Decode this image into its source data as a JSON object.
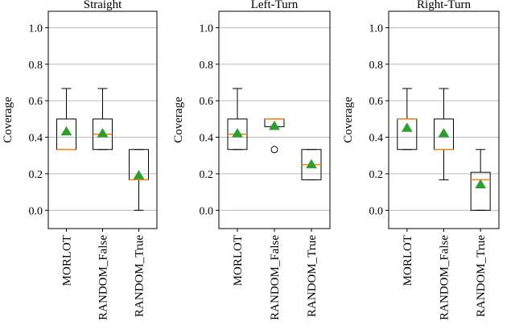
{
  "chart_data": [
    {
      "type": "box",
      "title": "Straight",
      "ylabel": "Coverage",
      "categories": [
        "MORLOT",
        "RANDOM_False",
        "RANDOM_True"
      ],
      "boxes": [
        {
          "whislo": 0.333,
          "q1": 0.333,
          "med": 0.333,
          "q3": 0.5,
          "whishi": 0.667,
          "mean": 0.43,
          "fliers": []
        },
        {
          "whislo": 0.333,
          "q1": 0.333,
          "med": 0.417,
          "q3": 0.5,
          "whishi": 0.667,
          "mean": 0.42,
          "fliers": []
        },
        {
          "whislo": 0,
          "q1": 0.167,
          "med": 0.167,
          "q3": 0.333,
          "whishi": 0.333,
          "mean": 0.19,
          "fliers": []
        }
      ],
      "ylim": [
        -0.1,
        1.09
      ],
      "yticks": [
        {
          "value": 0,
          "label": "0.0"
        },
        0.2,
        0.4,
        0.6,
        0.8,
        {
          "value": 1,
          "label": "1.0"
        }
      ],
      "grid": true,
      "median_color": "#ff7f0e",
      "mean_color": "#2ca02c"
    },
    {
      "type": "box",
      "title": "Left-Turn",
      "ylabel": "Coverage",
      "categories": [
        "MORLOT",
        "RANDOM_False",
        "RANDOM_True"
      ],
      "boxes": [
        {
          "whislo": 0.333,
          "q1": 0.333,
          "med": 0.417,
          "q3": 0.5,
          "whishi": 0.667,
          "mean": 0.42,
          "fliers": []
        },
        {
          "whislo": 0.458,
          "q1": 0.458,
          "med": 0.5,
          "q3": 0.5,
          "whishi": 0.5,
          "mean": 0.46,
          "fliers": [
            0.333
          ]
        },
        {
          "whislo": 0.167,
          "q1": 0.167,
          "med": 0.25,
          "q3": 0.333,
          "whishi": 0.333,
          "mean": 0.25,
          "fliers": []
        }
      ],
      "ylim": [
        -0.1,
        1.09
      ],
      "yticks": [
        {
          "value": 0,
          "label": "0.0"
        },
        0.2,
        0.4,
        0.6,
        0.8,
        {
          "value": 1,
          "label": "1.0"
        }
      ],
      "grid": true,
      "median_color": "#ff7f0e",
      "mean_color": "#2ca02c"
    },
    {
      "type": "box",
      "title": "Right-Turn",
      "ylabel": "Coverage",
      "categories": [
        "MORLOT",
        "RANDOM_False",
        "RANDOM_True"
      ],
      "boxes": [
        {
          "whislo": 0.333,
          "q1": 0.333,
          "med": 0.5,
          "q3": 0.5,
          "whishi": 0.667,
          "mean": 0.45,
          "fliers": []
        },
        {
          "whislo": 0.167,
          "q1": 0.333,
          "med": 0.333,
          "q3": 0.5,
          "whishi": 0.667,
          "mean": 0.42,
          "fliers": []
        },
        {
          "whislo": 0,
          "q1": 0,
          "med": 0.167,
          "q3": 0.208,
          "whishi": 0.333,
          "mean": 0.14,
          "fliers": []
        }
      ],
      "ylim": [
        -0.1,
        1.09
      ],
      "yticks": [
        {
          "value": 0,
          "label": "0.0"
        },
        0.2,
        0.4,
        0.6,
        0.8,
        {
          "value": 1,
          "label": "1.0"
        }
      ],
      "grid": true,
      "median_color": "#ff7f0e",
      "mean_color": "#2ca02c"
    }
  ]
}
